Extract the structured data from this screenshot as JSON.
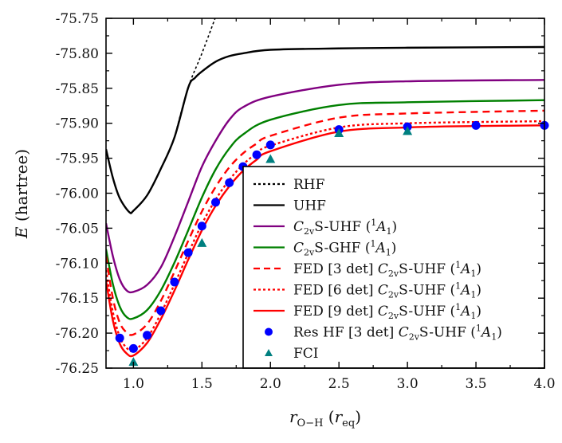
{
  "chart_data": {
    "type": "line",
    "xlabel": "r_O−H (r_eq)",
    "xlabel_main": "r",
    "xlabel_sub": "O−H",
    "xlabel_unit_open": " (",
    "xlabel_unit": "r",
    "xlabel_unit_sub": "eq",
    "xlabel_unit_close": ")",
    "ylabel": "E (hartree)",
    "ylabel_main": "E",
    "ylabel_unit": " (hartree)",
    "xlim": [
      0.8,
      4.0
    ],
    "ylim": [
      -76.25,
      -75.75
    ],
    "xticks": [
      "1.0",
      "1.5",
      "2.0",
      "2.5",
      "3.0",
      "3.5",
      "4.0"
    ],
    "yticks": [
      "-75.75",
      "-75.80",
      "-75.85",
      "-75.90",
      "-75.95",
      "-76.00",
      "-76.05",
      "-76.10",
      "-76.15",
      "-76.20",
      "-76.25"
    ],
    "grid": false,
    "legend_position": "bottom-right",
    "series": [
      {
        "name": "RHF",
        "style": "dotted",
        "color": "#000000",
        "x": [
          1.3,
          1.4,
          1.5,
          1.6
        ],
        "y": [
          -75.92,
          -75.849,
          -75.8,
          -75.748
        ]
      },
      {
        "name": "UHF",
        "style": "solid",
        "color": "#000000",
        "x": [
          0.8,
          0.85,
          0.9,
          0.97,
          1.0,
          1.1,
          1.2,
          1.3,
          1.4,
          1.45,
          1.5,
          1.6,
          1.7,
          1.8,
          2.0,
          2.5,
          3.0,
          4.0
        ],
        "y": [
          -75.937,
          -75.978,
          -76.007,
          -76.027,
          -76.025,
          -76.003,
          -75.965,
          -75.92,
          -75.849,
          -75.835,
          -75.826,
          -75.812,
          -75.804,
          -75.8,
          -75.795,
          -75.793,
          -75.792,
          -75.791
        ]
      },
      {
        "name": "C2vS-UHF (1A1)",
        "style": "solid",
        "color": "#800080",
        "x": [
          0.8,
          0.85,
          0.9,
          0.95,
          1.0,
          1.1,
          1.2,
          1.3,
          1.4,
          1.5,
          1.6,
          1.7,
          1.8,
          2.0,
          2.5,
          3.0,
          4.0
        ],
        "y": [
          -76.043,
          -76.09,
          -76.123,
          -76.139,
          -76.141,
          -76.131,
          -76.106,
          -76.062,
          -76.012,
          -75.962,
          -75.925,
          -75.895,
          -75.877,
          -75.862,
          -75.845,
          -75.84,
          -75.838
        ]
      },
      {
        "name": "C2vS-GHF (1A1)",
        "style": "solid",
        "color": "#008000",
        "x": [
          0.8,
          0.85,
          0.9,
          0.95,
          1.0,
          1.1,
          1.2,
          1.3,
          1.4,
          1.5,
          1.6,
          1.7,
          1.8,
          2.0,
          2.5,
          3.0,
          4.0
        ],
        "y": [
          -76.08,
          -76.13,
          -76.162,
          -76.177,
          -76.179,
          -76.167,
          -76.139,
          -76.099,
          -76.053,
          -76.006,
          -75.966,
          -75.936,
          -75.916,
          -75.895,
          -75.874,
          -75.87,
          -75.867
        ]
      },
      {
        "name": "FED [3 det] C2vS-UHF (1A1)",
        "style": "dashed",
        "color": "#ff0000",
        "x": [
          0.8,
          0.85,
          0.9,
          0.95,
          1.0,
          1.1,
          1.2,
          1.3,
          1.4,
          1.5,
          1.6,
          1.7,
          1.8,
          1.9,
          2.0,
          2.5,
          3.0,
          4.0
        ],
        "y": [
          -76.09,
          -76.15,
          -76.185,
          -76.199,
          -76.202,
          -76.187,
          -76.154,
          -76.112,
          -76.068,
          -76.026,
          -75.991,
          -75.963,
          -75.943,
          -75.929,
          -75.918,
          -75.892,
          -75.886,
          -75.882
        ]
      },
      {
        "name": "FED [6 det] C2vS-UHF (1A1)",
        "style": "dotted",
        "color": "#ff0000",
        "x": [
          0.8,
          0.85,
          0.9,
          0.95,
          1.0,
          1.1,
          1.2,
          1.3,
          1.4,
          1.5,
          1.6,
          1.7,
          1.8,
          1.9,
          2.0,
          2.5,
          3.0,
          4.0
        ],
        "y": [
          -76.11,
          -76.17,
          -76.205,
          -76.221,
          -76.225,
          -76.207,
          -76.172,
          -76.13,
          -76.086,
          -76.044,
          -76.009,
          -75.981,
          -75.959,
          -75.943,
          -75.932,
          -75.906,
          -75.9,
          -75.897
        ]
      },
      {
        "name": "FED [9 det] C2vS-UHF (1A1)",
        "style": "solid",
        "color": "#ff0000",
        "x": [
          0.8,
          0.85,
          0.9,
          0.95,
          1.0,
          1.1,
          1.2,
          1.3,
          1.4,
          1.5,
          1.6,
          1.7,
          1.8,
          1.9,
          2.0,
          2.5,
          3.0,
          3.5,
          4.0
        ],
        "y": [
          -76.125,
          -76.182,
          -76.215,
          -76.229,
          -76.232,
          -76.214,
          -76.18,
          -76.139,
          -76.095,
          -76.053,
          -76.018,
          -75.99,
          -75.968,
          -75.952,
          -75.94,
          -75.912,
          -75.906,
          -75.904,
          -75.903
        ]
      },
      {
        "name": "Res HF [3 det] C2vS-UHF (1A1)",
        "style": "markers-circle",
        "color": "#0000ff",
        "x": [
          0.9,
          1.0,
          1.1,
          1.2,
          1.3,
          1.4,
          1.5,
          1.6,
          1.7,
          1.8,
          1.9,
          2.0,
          2.5,
          3.0,
          3.5,
          4.0
        ],
        "y": [
          -76.207,
          -76.222,
          -76.203,
          -76.168,
          -76.127,
          -76.085,
          -76.047,
          -76.013,
          -75.985,
          -75.962,
          -75.945,
          -75.931,
          -75.909,
          -75.905,
          -75.903,
          -75.903
        ]
      },
      {
        "name": "FCI",
        "style": "markers-triangle",
        "color": "#008080",
        "x": [
          1.0,
          1.5,
          2.0,
          2.5,
          3.0
        ],
        "y": [
          -76.241,
          -76.071,
          -75.951,
          -75.914,
          -75.911
        ]
      }
    ],
    "legend": [
      {
        "pre": "RHF",
        "italic": "",
        "sub": "",
        "post": "",
        "sup": "",
        "it2": "",
        "sub2": "",
        "close": ""
      },
      {
        "pre": "UHF",
        "italic": "",
        "sub": "",
        "post": "",
        "sup": "",
        "it2": "",
        "sub2": "",
        "close": ""
      },
      {
        "pre": "",
        "italic": "C",
        "sub": "2v",
        "post": "S-UHF (",
        "sup": "1",
        "it2": "A",
        "sub2": "1",
        "close": ")"
      },
      {
        "pre": "",
        "italic": "C",
        "sub": "2v",
        "post": "S-GHF (",
        "sup": "1",
        "it2": "A",
        "sub2": "1",
        "close": ")"
      },
      {
        "pre": "FED [3 det] ",
        "italic": "C",
        "sub": "2v",
        "post": "S-UHF (",
        "sup": "1",
        "it2": "A",
        "sub2": "1",
        "close": ")"
      },
      {
        "pre": "FED [6 det] ",
        "italic": "C",
        "sub": "2v",
        "post": "S-UHF (",
        "sup": "1",
        "it2": "A",
        "sub2": "1",
        "close": ")"
      },
      {
        "pre": "FED [9 det] ",
        "italic": "C",
        "sub": "2v",
        "post": "S-UHF (",
        "sup": "1",
        "it2": "A",
        "sub2": "1",
        "close": ")"
      },
      {
        "pre": "Res HF [3 det] ",
        "italic": "C",
        "sub": "2v",
        "post": "S-UHF (",
        "sup": "1",
        "it2": "A",
        "sub2": "1",
        "close": ")"
      },
      {
        "pre": "FCI",
        "italic": "",
        "sub": "",
        "post": "",
        "sup": "",
        "it2": "",
        "sub2": "",
        "close": ""
      }
    ]
  }
}
